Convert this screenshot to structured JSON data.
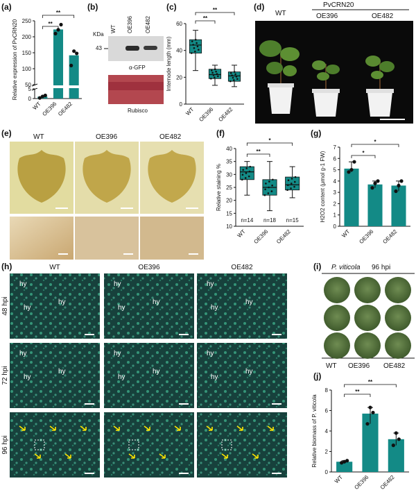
{
  "panel_labels": {
    "a": "(a)",
    "b": "(b)",
    "c": "(c)",
    "d": "(d)",
    "e": "(e)",
    "f": "(f)",
    "g": "(g)",
    "h": "(h)",
    "i": "(i)",
    "j": "(j)"
  },
  "genotypes": [
    "WT",
    "OE396",
    "OE482"
  ],
  "colors": {
    "teal": "#138a86",
    "teal_dark": "#0e6d6a",
    "point": "#111111",
    "scale": "#ffffff"
  },
  "sig": {
    "double": "**",
    "single": "*"
  },
  "blot": {
    "kda_label": "KDa",
    "mw_43": "43",
    "gfp_label": "α-GFP",
    "rubisco_label": "Rubisco"
  },
  "panel_d": {
    "construct_label": "PvCRN20"
  },
  "panel_f": {
    "n_labels": [
      "n=14",
      "n=18",
      "n=15"
    ]
  },
  "panel_h": {
    "col_titles": [
      "WT",
      "OE396",
      "OE482"
    ],
    "row_titles": [
      "48 hpi",
      "72 hpi",
      "96 hpi"
    ],
    "hy_label": "hy"
  },
  "panel_i": {
    "title_species": "P. viticola",
    "title_time": "96 hpi"
  },
  "chart_data": [
    {
      "panel": "a",
      "type": "bar",
      "ylabel": "Relative expression of PvCRN20",
      "categories": [
        "WT",
        "OE396",
        "OE482"
      ],
      "values": [
        1,
        223,
        142
      ],
      "ylim": [
        0,
        250
      ],
      "broken_axis": [
        5,
        50
      ],
      "ticks": [
        "0",
        "5",
        "50",
        "100",
        "150",
        "200",
        "250"
      ],
      "points": [
        [
          0.3,
          1.1,
          1.6
        ],
        [
          210,
          222,
          238
        ],
        [
          110,
          155,
          148
        ]
      ]
    },
    {
      "panel": "c",
      "type": "box",
      "ylabel": "Internode length (mm)",
      "categories": [
        "WT",
        "OE396",
        "OE482"
      ],
      "ylim": [
        0,
        60
      ],
      "ticks": [
        "0",
        "20",
        "40",
        "60"
      ],
      "boxes": [
        {
          "min": 25,
          "q1": 38,
          "median": 44,
          "q3": 48,
          "max": 55
        },
        {
          "min": 14,
          "q1": 19,
          "median": 22,
          "q3": 26,
          "max": 29
        },
        {
          "min": 13,
          "q1": 17,
          "median": 21,
          "q3": 24,
          "max": 29
        }
      ]
    },
    {
      "panel": "f",
      "type": "box",
      "ylabel": "Relative staining %",
      "categories": [
        "WT",
        "OE396",
        "OE482"
      ],
      "ylim": [
        10,
        40
      ],
      "ticks": [
        "10",
        "15",
        "20",
        "25",
        "30",
        "35",
        "40"
      ],
      "boxes": [
        {
          "min": 22,
          "q1": 28,
          "median": 31,
          "q3": 33,
          "max": 35
        },
        {
          "min": 16,
          "q1": 22,
          "median": 25,
          "q3": 28,
          "max": 35
        },
        {
          "min": 21,
          "q1": 24,
          "median": 26,
          "q3": 29,
          "max": 33
        }
      ]
    },
    {
      "panel": "g",
      "type": "bar",
      "ylabel": "H2O2 content (μmol g-1 FW)",
      "categories": [
        "WT",
        "OE396",
        "OE482"
      ],
      "values": [
        5.1,
        3.7,
        3.6
      ],
      "ylim": [
        0,
        7
      ],
      "ticks": [
        "0",
        "1",
        "2",
        "3",
        "4",
        "5",
        "6",
        "7"
      ],
      "points": [
        [
          4.8,
          5.0,
          5.7
        ],
        [
          3.4,
          3.8,
          4.0
        ],
        [
          3.1,
          3.6,
          4.0
        ]
      ]
    },
    {
      "panel": "j",
      "type": "bar",
      "ylabel": "Relative biomass of P. viticola",
      "categories": [
        "WT",
        "OE396",
        "OE482"
      ],
      "values": [
        1.0,
        5.7,
        3.2
      ],
      "ylim": [
        0,
        8
      ],
      "ticks": [
        "0",
        "2",
        "4",
        "6",
        "8"
      ],
      "points": [
        [
          0.9,
          1.0,
          1.1
        ],
        [
          4.7,
          6.3,
          5.8
        ],
        [
          2.6,
          3.8,
          3.2
        ]
      ]
    }
  ]
}
